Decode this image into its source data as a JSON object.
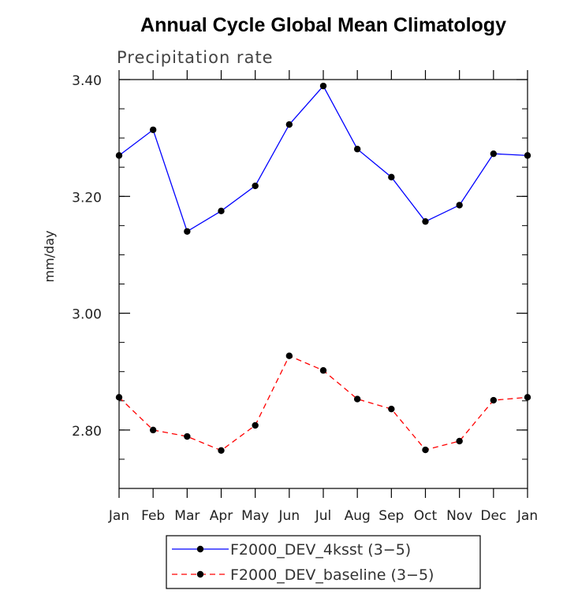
{
  "chart_data": {
    "type": "line",
    "title": "Annual Cycle Global Mean Climatology",
    "subtitle": "Precipitation rate",
    "ylabel": "mm/day",
    "xlabel": "",
    "categories": [
      "Jan",
      "Feb",
      "Mar",
      "Apr",
      "May",
      "Jun",
      "Jul",
      "Aug",
      "Sep",
      "Oct",
      "Nov",
      "Dec",
      "Jan"
    ],
    "ylim": [
      2.7,
      3.4
    ],
    "yticks": [
      "3.40",
      "3.20",
      "3.00",
      "2.80"
    ],
    "ytick_values": [
      3.4,
      3.2,
      3.0,
      2.8
    ],
    "series": [
      {
        "name": "F2000_DEV_4ksst (3-5)",
        "color": "#0000ff",
        "dash": "solid",
        "values": [
          3.27,
          3.314,
          3.14,
          3.175,
          3.218,
          3.323,
          3.389,
          3.281,
          3.233,
          3.157,
          3.185,
          3.273,
          3.27
        ]
      },
      {
        "name": "F2000_DEV_baseline (3-5)",
        "color": "#ff0000",
        "dash": "dashed",
        "values": [
          2.856,
          2.8,
          2.789,
          2.765,
          2.808,
          2.927,
          2.902,
          2.853,
          2.836,
          2.766,
          2.781,
          2.851,
          2.856
        ]
      }
    ],
    "legend": [
      {
        "label": "F2000_DEV_4ksst (3−5)"
      },
      {
        "label": "F2000_DEV_baseline (3−5)"
      }
    ]
  }
}
